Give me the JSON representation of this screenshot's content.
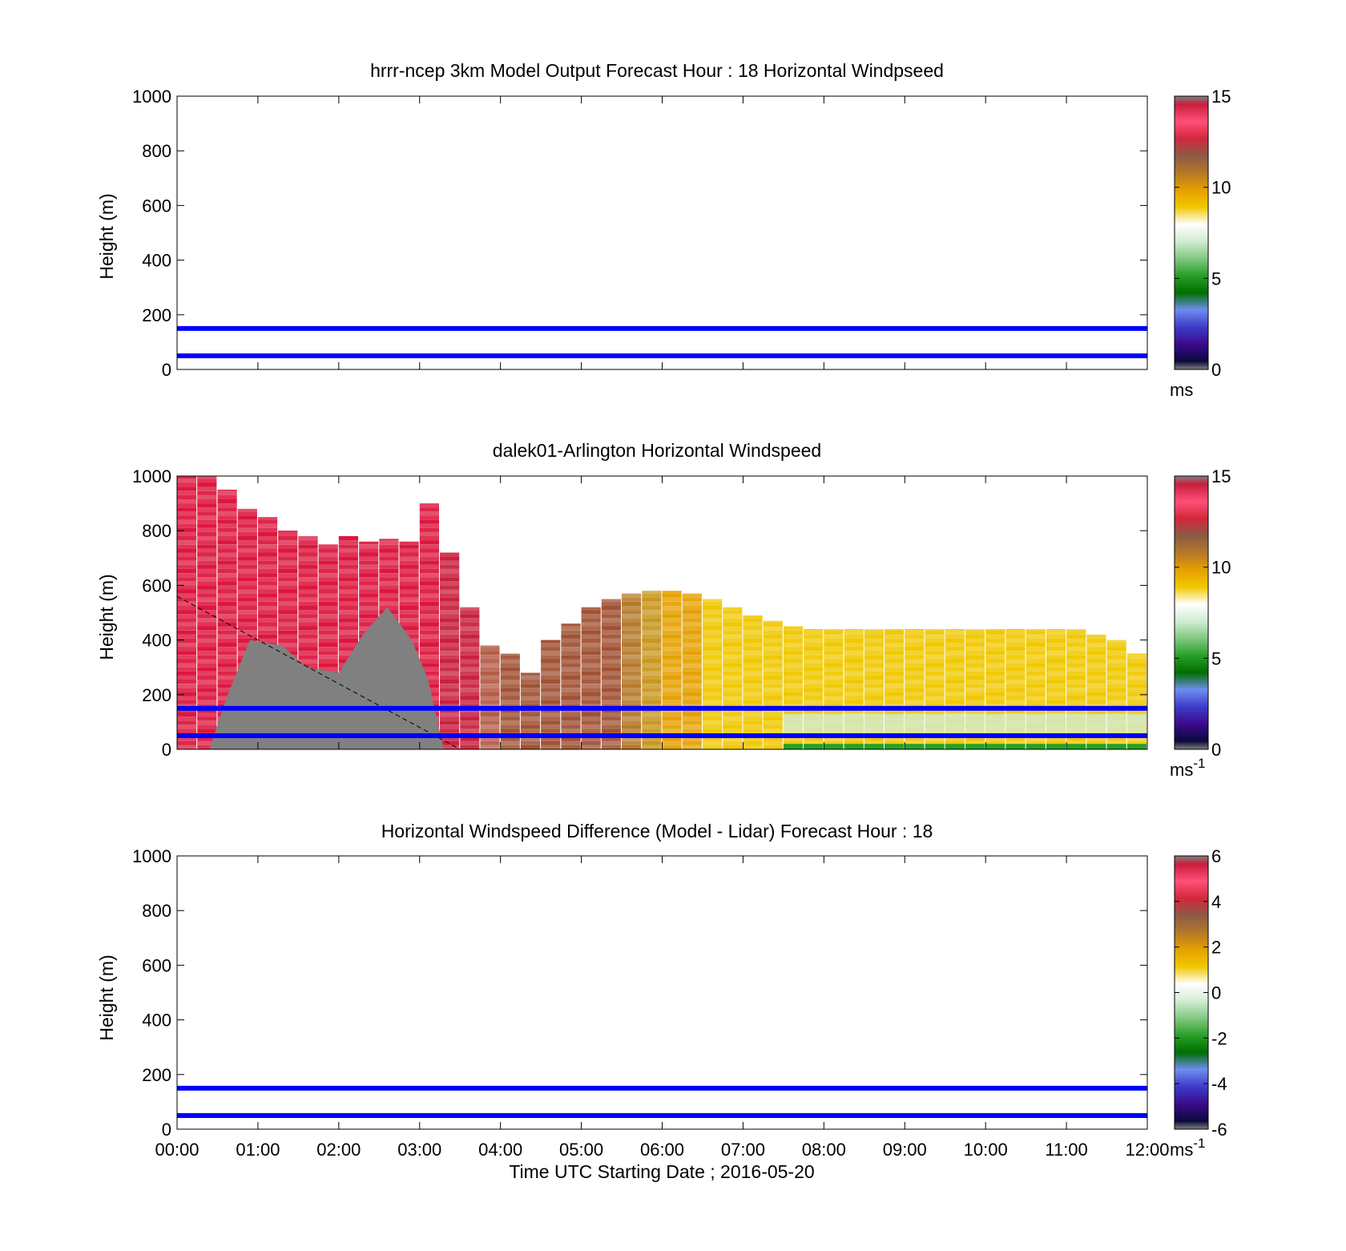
{
  "palette": {
    "colorbar_stops": [
      "#808080",
      "#0a0a3c",
      "#3c0a8c",
      "#3c3cc8",
      "#6e8cf0",
      "#006e00",
      "#28a028",
      "#82c882",
      "#d2ecd2",
      "#ffffff",
      "#f0c800",
      "#e6a000",
      "#b47828",
      "#8c5a46",
      "#d2283c",
      "#ff5078",
      "#c81e3c",
      "#808080"
    ],
    "lidar_ranges": [
      "#dc143c",
      "#dc143c",
      "#dc143c",
      "#dc143c",
      "#dc143c",
      "#dc143c",
      "#dc143c",
      "#dc143c",
      "#dc143c",
      "#dc143c",
      "#dc143c",
      "#dc143c",
      "#dc143c",
      "#c81e3c",
      "#c81e3c",
      "#b45a46",
      "#a05032",
      "#a05032",
      "#a05032",
      "#a05032",
      "#a05032",
      "#a05032",
      "#b47828",
      "#c8961e",
      "#e6a000",
      "#e6a000",
      "#f0c800",
      "#f0c800",
      "#f0c800",
      "#f0c800",
      "#f0c800",
      "#f0c800",
      "#f0c800",
      "#f0c800",
      "#f0c800",
      "#f0c800",
      "#f0c800",
      "#f0c800",
      "#f0c800",
      "#f0c800",
      "#f0c800",
      "#f0c800",
      "#f0c800",
      "#f0c800",
      "#f0c800",
      "#f0c800",
      "#f0c800",
      "#f0c800"
    ],
    "ref_line": "#0000ff",
    "fill_gray": "#808080"
  },
  "chart_data": [
    {
      "type": "heatmap",
      "title": "hrrr-ncep 3km Model Output   Forecast Hour : 18 Horizontal Windpseed",
      "ylabel": "Height (m)",
      "xlabel": "",
      "ylim": [
        0,
        1000
      ],
      "yticks": [
        "0",
        "200",
        "400",
        "600",
        "800",
        "1000"
      ],
      "x_range": [
        "00:00",
        "12:00"
      ],
      "reference_lines_m": [
        50,
        150
      ],
      "colorbar": {
        "range": [
          0,
          15
        ],
        "ticks": [
          "0",
          "5",
          "10",
          "15"
        ],
        "unit": "ms",
        "unit_sup": ""
      },
      "data_present": false
    },
    {
      "type": "heatmap",
      "title": "dalek01-Arlington  Horizontal Windspeed",
      "ylabel": "Height (m)",
      "xlabel": "",
      "ylim": [
        0,
        1000
      ],
      "yticks": [
        "0",
        "200",
        "400",
        "600",
        "800",
        "1000"
      ],
      "x_range": [
        "00:00",
        "12:00"
      ],
      "reference_lines_m": [
        50,
        150
      ],
      "colorbar": {
        "range": [
          0,
          15
        ],
        "ticks": [
          "0",
          "5",
          "10",
          "15"
        ],
        "unit": "ms",
        "unit_sup": "-1"
      },
      "data_present": true,
      "column_width_hours": 0.25,
      "column_top_m": [
        1000,
        1000,
        950,
        880,
        850,
        800,
        780,
        750,
        780,
        760,
        770,
        760,
        900,
        720,
        520,
        380,
        350,
        280,
        400,
        460,
        520,
        550,
        570,
        580,
        580,
        570,
        550,
        520,
        490,
        470,
        450,
        440,
        440,
        440,
        440,
        440,
        440,
        440,
        440,
        440,
        440,
        440,
        440,
        440,
        440,
        420,
        400,
        350
      ],
      "column_mean_speed_ms": [
        13.5,
        13.5,
        13.5,
        13.5,
        13.5,
        13.5,
        13.5,
        13.5,
        13.5,
        13.5,
        13.5,
        13.5,
        13.5,
        14.0,
        14.0,
        12.0,
        11.5,
        11.5,
        11.5,
        11.5,
        11.5,
        11.5,
        10.8,
        10.3,
        9.8,
        9.6,
        9.3,
        9.0,
        9.0,
        9.0,
        9.0,
        9.0,
        9.0,
        9.0,
        9.0,
        9.0,
        9.0,
        9.0,
        9.0,
        9.0,
        9.0,
        9.0,
        9.0,
        9.0,
        9.0,
        9.0,
        9.0,
        9.0
      ],
      "gray_region_m": {
        "hours": [
          0.4,
          0.6,
          0.9,
          1.3,
          1.6,
          2.0,
          2.3,
          2.6,
          2.9,
          3.1,
          3.3
        ],
        "top_m": [
          0,
          180,
          400,
          380,
          300,
          280,
          420,
          520,
          400,
          260,
          0
        ]
      },
      "dashed_line": {
        "from": [
          "00:00",
          560
        ],
        "to": [
          "03:30",
          0
        ]
      }
    },
    {
      "type": "heatmap",
      "title": "Horizontal Windspeed Difference (Model - Lidar) Forecast Hour : 18",
      "ylabel": "Height (m)",
      "xlabel": "Time UTC  Starting Date ; 2016-05-20",
      "ylim": [
        0,
        1000
      ],
      "yticks": [
        "0",
        "200",
        "400",
        "600",
        "800",
        "1000"
      ],
      "xticks": [
        "00:00",
        "01:00",
        "02:00",
        "03:00",
        "04:00",
        "05:00",
        "06:00",
        "07:00",
        "08:00",
        "09:00",
        "10:00",
        "11:00",
        "12:00"
      ],
      "x_range": [
        "00:00",
        "12:00"
      ],
      "reference_lines_m": [
        50,
        150
      ],
      "colorbar": {
        "range": [
          -6,
          6
        ],
        "ticks": [
          "-6",
          "-4",
          "-2",
          "0",
          "2",
          "4",
          "6"
        ],
        "unit": "ms",
        "unit_sup": "-1"
      },
      "data_present": false
    }
  ]
}
